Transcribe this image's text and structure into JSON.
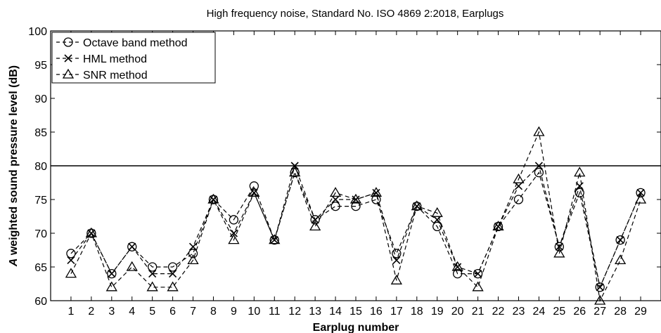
{
  "chart_data": {
    "type": "line",
    "title": "High  frequency noise, Standard No. ISO 4869  2:2018, Earplugs",
    "xlabel": "Earplug number",
    "ylabel_italic": "A",
    "ylabel_rest": " weighted sound pressure level (dB)",
    "xlim": [
      0,
      30
    ],
    "ylim": [
      60,
      100
    ],
    "x": [
      1,
      2,
      3,
      4,
      5,
      6,
      7,
      8,
      9,
      10,
      11,
      12,
      13,
      14,
      15,
      16,
      17,
      18,
      19,
      20,
      21,
      22,
      23,
      24,
      25,
      26,
      27,
      28,
      29
    ],
    "x_ticks": [
      "1",
      "2",
      "3",
      "4",
      "5",
      "6",
      "7",
      "8",
      "9",
      "10",
      "11",
      "12",
      "13",
      "14",
      "15",
      "16",
      "17",
      "18",
      "19",
      "20",
      "21",
      "22",
      "23",
      "24",
      "25",
      "26",
      "27",
      "28",
      "29"
    ],
    "y_ticks": [
      "60",
      "65",
      "70",
      "75",
      "80",
      "85",
      "90",
      "95",
      "100"
    ],
    "reference_line": {
      "y": 80
    },
    "legend_position": "top-left",
    "grid": false,
    "series": [
      {
        "name": "Octave band method",
        "marker": "circle",
        "values": [
          67,
          70,
          64,
          68,
          65,
          65,
          67,
          75,
          72,
          77,
          69,
          79,
          72,
          74,
          74,
          75,
          67,
          74,
          71,
          64,
          64,
          71,
          75,
          79,
          68,
          76,
          62,
          69,
          76
        ]
      },
      {
        "name": "HML method",
        "marker": "x",
        "values": [
          66,
          70,
          64,
          68,
          64,
          64,
          68,
          75,
          70,
          76,
          69,
          80,
          72,
          75,
          75,
          76,
          66,
          74,
          72,
          65,
          64,
          71,
          77,
          80,
          68,
          77,
          62,
          69,
          76
        ]
      },
      {
        "name": "SNR method",
        "marker": "triangle",
        "values": [
          64,
          70,
          62,
          65,
          62,
          62,
          66,
          75,
          69,
          76,
          69,
          79,
          71,
          76,
          75,
          76,
          63,
          74,
          73,
          65,
          62,
          71,
          78,
          85,
          67,
          79,
          60,
          66,
          75
        ]
      }
    ]
  }
}
